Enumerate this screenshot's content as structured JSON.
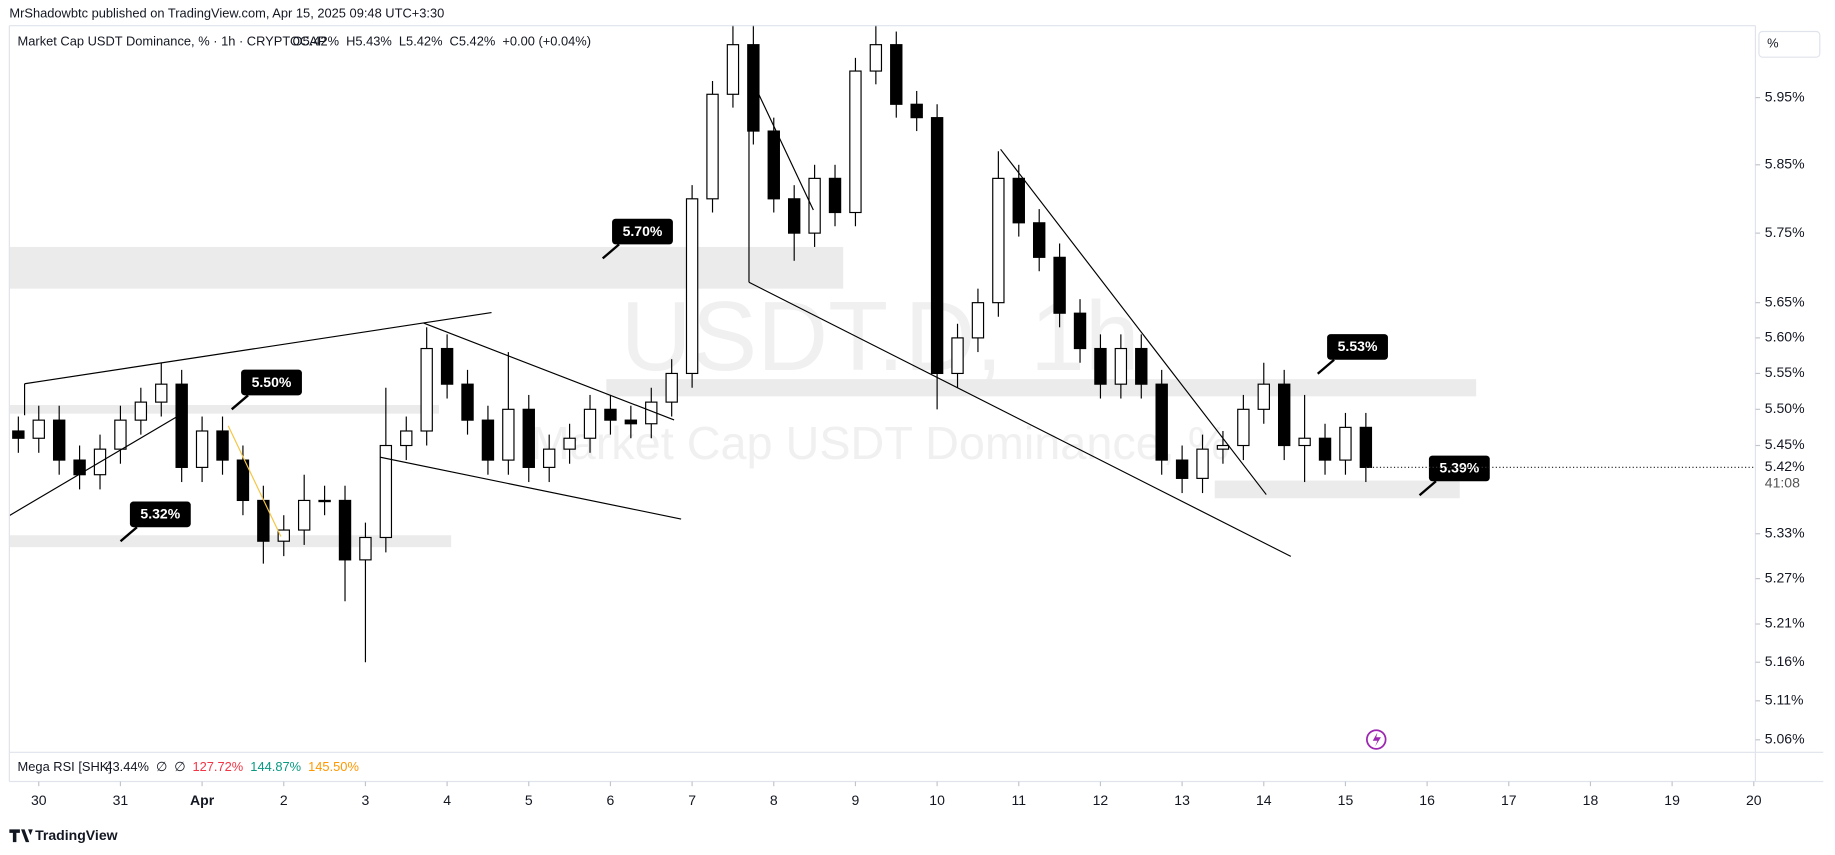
{
  "header": {
    "published": "MrShadowbtc published on TradingView.com, Apr 15, 2025 09:48 UTC+3:30",
    "brand": "TradingView",
    "scale_button": "%"
  },
  "chart_data": {
    "type": "candlestick",
    "title": "Market Cap USDT Dominance, % · 1h · CRYPTOCAP",
    "ohlc_legend": [
      "O5.42%",
      "H5.43%",
      "L5.42%",
      "C5.42%",
      "+0.00 (+0.04%)"
    ],
    "watermark": [
      "USDT.D, 1h",
      "Market Cap USDT Dominance, %"
    ],
    "log_scale": true,
    "grid": false,
    "up_color": "#ffffff",
    "down_color": "#000000",
    "x": [
      -0.25,
      0,
      0.25,
      0.5,
      0.75,
      1,
      1.25,
      1.5,
      1.75,
      2,
      2.25,
      2.5,
      2.75,
      3,
      3.25,
      3.5,
      3.75,
      4,
      4.25,
      4.5,
      4.75,
      5,
      5.25,
      5.5,
      5.75,
      6,
      6.25,
      6.5,
      6.75,
      7,
      7.25,
      7.5,
      7.75,
      8,
      8.25,
      8.5,
      8.75,
      9,
      9.25,
      9.5,
      9.75,
      10,
      10.25,
      10.5,
      10.75,
      11,
      11.25,
      11.5,
      11.75,
      12,
      12.25,
      12.5,
      12.75,
      13,
      13.25,
      13.5,
      13.75,
      14,
      14.25,
      14.5,
      14.75,
      15,
      15.25,
      15.5,
      15.75,
      16,
      16.25
    ],
    "open": [
      5.47,
      5.46,
      5.485,
      5.43,
      5.41,
      5.445,
      5.485,
      5.51,
      5.535,
      5.42,
      5.47,
      5.43,
      5.375,
      5.32,
      5.335,
      5.375,
      5.375,
      5.295,
      5.325,
      5.45,
      5.47,
      5.585,
      5.535,
      5.485,
      5.43,
      5.5,
      5.42,
      5.445,
      5.46,
      5.5,
      5.485,
      5.48,
      5.51,
      5.55,
      5.8,
      5.955,
      6.03,
      5.9,
      5.8,
      5.75,
      5.83,
      5.78,
      5.99,
      6.03,
      5.94,
      5.92,
      5.55,
      5.6,
      5.65,
      5.83,
      5.765,
      5.715,
      5.635,
      5.585,
      5.535,
      5.585,
      5.535,
      5.43,
      5.405,
      5.445,
      5.45,
      5.5,
      5.535,
      5.45,
      5.46,
      5.43,
      5.475
    ],
    "high": [
      5.49,
      5.505,
      5.505,
      5.45,
      5.465,
      5.505,
      5.53,
      5.565,
      5.555,
      5.49,
      5.49,
      5.45,
      5.395,
      5.355,
      5.41,
      5.395,
      5.395,
      5.345,
      5.53,
      5.49,
      5.615,
      5.605,
      5.555,
      5.505,
      5.58,
      5.52,
      5.465,
      5.48,
      5.52,
      5.52,
      5.505,
      5.53,
      5.57,
      5.82,
      5.975,
      6.06,
      6.06,
      5.92,
      5.82,
      5.85,
      5.85,
      6.01,
      6.06,
      6.05,
      5.96,
      5.94,
      5.62,
      5.67,
      5.87,
      5.85,
      5.785,
      5.735,
      5.655,
      5.605,
      5.605,
      5.605,
      5.555,
      5.45,
      5.465,
      5.47,
      5.52,
      5.565,
      5.555,
      5.52,
      5.48,
      5.495,
      5.495
    ],
    "low": [
      5.44,
      5.44,
      5.41,
      5.39,
      5.39,
      5.425,
      5.465,
      5.49,
      5.4,
      5.4,
      5.41,
      5.355,
      5.29,
      5.3,
      5.315,
      5.355,
      5.24,
      5.16,
      5.305,
      5.43,
      5.45,
      5.515,
      5.465,
      5.41,
      5.41,
      5.4,
      5.4,
      5.425,
      5.44,
      5.465,
      5.46,
      5.46,
      5.49,
      5.53,
      5.78,
      5.935,
      5.88,
      5.78,
      5.71,
      5.73,
      5.76,
      5.76,
      5.97,
      5.92,
      5.9,
      5.5,
      5.53,
      5.58,
      5.63,
      5.745,
      5.695,
      5.615,
      5.565,
      5.515,
      5.515,
      5.515,
      5.41,
      5.385,
      5.385,
      5.425,
      5.43,
      5.48,
      5.43,
      5.4,
      5.41,
      5.41,
      5.4
    ],
    "close": [
      5.46,
      5.485,
      5.43,
      5.41,
      5.445,
      5.485,
      5.51,
      5.535,
      5.42,
      5.47,
      5.43,
      5.375,
      5.32,
      5.335,
      5.375,
      5.375,
      5.295,
      5.325,
      5.45,
      5.47,
      5.585,
      5.535,
      5.485,
      5.43,
      5.5,
      5.42,
      5.445,
      5.46,
      5.5,
      5.485,
      5.48,
      5.51,
      5.55,
      5.8,
      5.955,
      6.03,
      5.9,
      5.8,
      5.75,
      5.83,
      5.78,
      5.99,
      6.03,
      5.94,
      5.92,
      5.55,
      5.6,
      5.65,
      5.83,
      5.765,
      5.715,
      5.635,
      5.585,
      5.535,
      5.585,
      5.535,
      5.43,
      5.405,
      5.445,
      5.45,
      5.5,
      5.535,
      5.45,
      5.46,
      5.43,
      5.475,
      5.42
    ],
    "xlim": [
      -0.36,
      21.02
    ],
    "ylim": [
      5.044,
      6.059
    ],
    "xticks": [
      {
        "value": 0,
        "label": "30"
      },
      {
        "value": 1,
        "label": "31"
      },
      {
        "value": 2,
        "label": "Apr"
      },
      {
        "value": 3,
        "label": "2"
      },
      {
        "value": 4,
        "label": "3"
      },
      {
        "value": 5,
        "label": "4"
      },
      {
        "value": 6,
        "label": "5"
      },
      {
        "value": 7,
        "label": "6"
      },
      {
        "value": 8,
        "label": "7"
      },
      {
        "value": 9,
        "label": "8"
      },
      {
        "value": 10,
        "label": "9"
      },
      {
        "value": 11,
        "label": "10"
      },
      {
        "value": 12,
        "label": "11"
      },
      {
        "value": 13,
        "label": "12"
      },
      {
        "value": 14,
        "label": "13"
      },
      {
        "value": 15,
        "label": "14"
      },
      {
        "value": 16,
        "label": "15"
      },
      {
        "value": 17,
        "label": "16"
      },
      {
        "value": 18,
        "label": "17"
      },
      {
        "value": 19,
        "label": "18"
      },
      {
        "value": 20,
        "label": "19"
      },
      {
        "value": 21,
        "label": "20"
      }
    ],
    "yticks": [
      {
        "value": 5.06,
        "label": "5.06%"
      },
      {
        "value": 5.11,
        "label": "5.11%"
      },
      {
        "value": 5.16,
        "label": "5.16%"
      },
      {
        "value": 5.21,
        "label": "5.21%"
      },
      {
        "value": 5.27,
        "label": "5.27%"
      },
      {
        "value": 5.33,
        "label": "5.33%"
      },
      {
        "value": 5.45,
        "label": "5.45%"
      },
      {
        "value": 5.5,
        "label": "5.50%"
      },
      {
        "value": 5.55,
        "label": "5.55%"
      },
      {
        "value": 5.6,
        "label": "5.60%"
      },
      {
        "value": 5.65,
        "label": "5.65%"
      },
      {
        "value": 5.75,
        "label": "5.75%"
      },
      {
        "value": 5.85,
        "label": "5.85%"
      },
      {
        "value": 5.95,
        "label": "5.95%"
      }
    ],
    "last_price": {
      "value": 5.42,
      "label": "5.42%"
    },
    "countdown": "41:08",
    "annotations": [
      {
        "value": 5.7,
        "label": "5.70%"
      },
      {
        "value": 5.5,
        "label": "5.50%"
      },
      {
        "value": 5.32,
        "label": "5.32%"
      },
      {
        "value": 5.53,
        "label": "5.53%"
      },
      {
        "value": 5.39,
        "label": "5.39%"
      }
    ],
    "indicator": {
      "name": "Mega RSI [SHK]",
      "values": [
        "43.44%",
        "∅",
        "∅",
        "127.72%",
        "144.87%",
        "145.50%"
      ],
      "colors": [
        "#131722",
        "#131722",
        "#131722",
        "#f23645",
        "#089981",
        "#ff9800"
      ]
    }
  }
}
